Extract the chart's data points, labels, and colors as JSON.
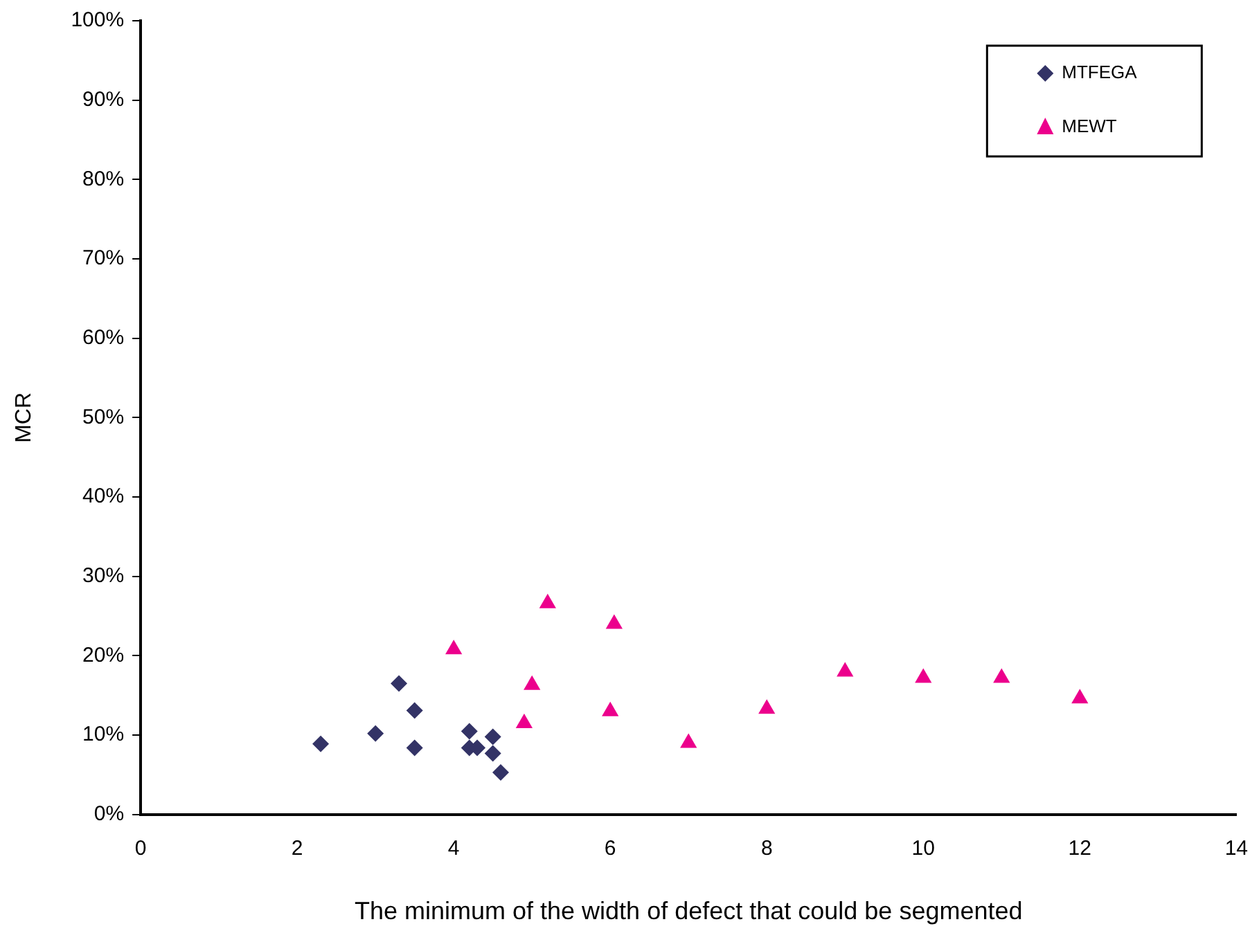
{
  "chart_data": {
    "type": "scatter",
    "xlabel": "The minimum of the width of defect that could be segmented",
    "ylabel": "MCR",
    "series": [
      {
        "name": "MTFEGA",
        "color": "#333366",
        "marker": "diamond",
        "x": [
          2.3,
          3.0,
          3.3,
          3.5,
          3.5,
          4.2,
          4.2,
          4.3,
          4.5,
          4.5,
          4.6
        ],
        "values": [
          8.9,
          10.2,
          16.5,
          13.1,
          8.4,
          10.5,
          8.4,
          8.4,
          9.8,
          7.7,
          5.3
        ]
      },
      {
        "name": "MEWT",
        "color": "#ec008c",
        "marker": "triangle",
        "x": [
          4.0,
          5.2,
          6.05,
          5.0,
          4.9,
          6.0,
          7.0,
          8.0,
          9.0,
          10.0,
          11.0,
          12.0
        ],
        "values": [
          20.8,
          26.6,
          24.0,
          16.3,
          11.5,
          13.0,
          9.0,
          13.3,
          18.0,
          17.2,
          17.2,
          14.6
        ]
      }
    ],
    "xlim": [
      0,
      14
    ],
    "xticks": [
      0,
      2,
      4,
      6,
      8,
      10,
      12,
      14
    ],
    "ylim": [
      0,
      100
    ],
    "yticks": [
      {
        "value": 0,
        "label": "0%"
      },
      {
        "value": 10,
        "label": "10%"
      },
      {
        "value": 20,
        "label": "20%"
      },
      {
        "value": 30,
        "label": "30%"
      },
      {
        "value": 40,
        "label": "40%"
      },
      {
        "value": 50,
        "label": "50%"
      },
      {
        "value": 60,
        "label": "60%"
      },
      {
        "value": 70,
        "label": "70%"
      },
      {
        "value": 80,
        "label": "80%"
      },
      {
        "value": 90,
        "label": "90%"
      },
      {
        "value": 100,
        "label": "100%"
      }
    ],
    "grid": false,
    "legend": "top right"
  }
}
